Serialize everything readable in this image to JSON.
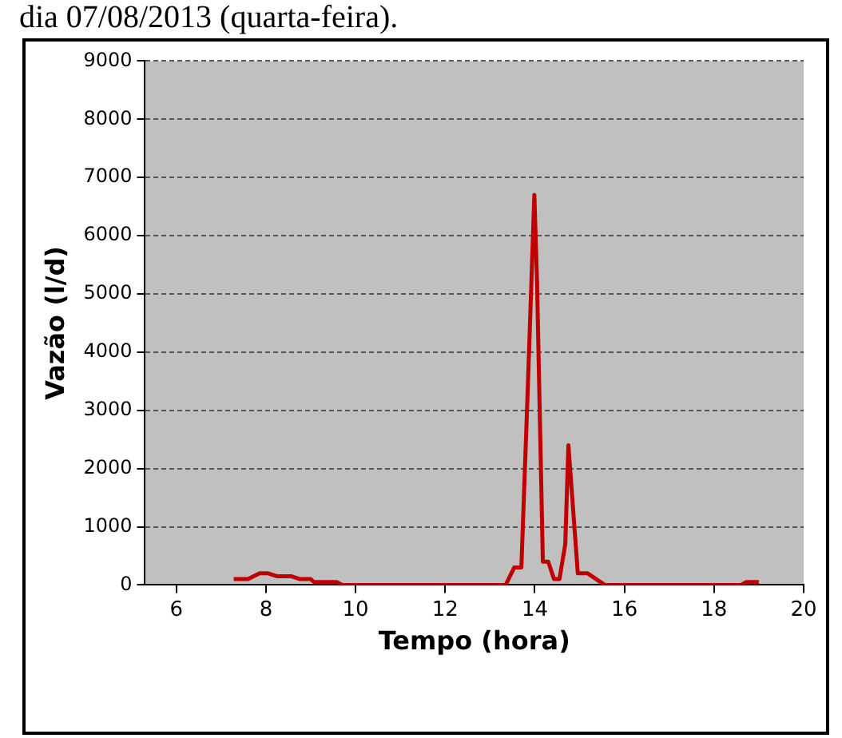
{
  "chart_data": {
    "type": "line",
    "annotations": [
      "dia 07/08/2013 (quarta-feira)."
    ],
    "xlabel": "Tempo (hora)",
    "ylabel": "Vazão (l/d)",
    "x": [
      7.28,
      7.6,
      7.86,
      8.05,
      8.24,
      8.56,
      8.76,
      9.0,
      9.07,
      9.58,
      9.7,
      10.0,
      13.35,
      13.54,
      13.7,
      13.84,
      13.99,
      14.05,
      14.18,
      14.3,
      14.43,
      14.55,
      14.68,
      14.75,
      14.96,
      15.18,
      15.37,
      15.56,
      16.0,
      18.6,
      18.72,
      19.0
    ],
    "series": [
      {
        "color": "#c00000",
        "values": [
          100,
          100,
          200,
          200,
          150,
          150,
          100,
          100,
          50,
          50,
          0,
          0,
          0,
          300,
          300,
          3300,
          6700,
          5200,
          400,
          400,
          100,
          100,
          700,
          2400,
          200,
          200,
          100,
          0,
          0,
          0,
          50,
          50
        ]
      }
    ],
    "xlim": [
      5.3,
      20
    ],
    "xticks": [
      6,
      8,
      10,
      12,
      14,
      16,
      18,
      20
    ],
    "ylim": [
      0,
      9000
    ],
    "yticks": [
      0,
      1000,
      2000,
      3000,
      4000,
      5000,
      6000,
      7000,
      8000,
      9000
    ],
    "grid": "y",
    "legend": false,
    "marker": "none",
    "line_style": "solid"
  }
}
